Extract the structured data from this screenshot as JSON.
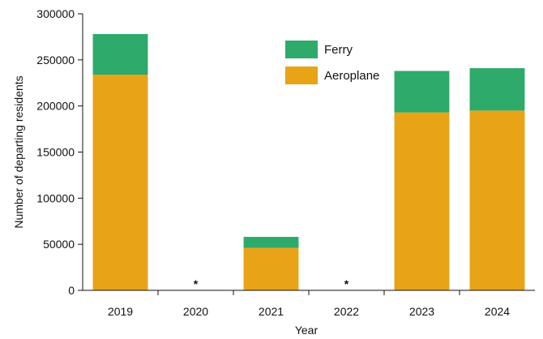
{
  "chart_data": {
    "type": "bar",
    "stacked": true,
    "xlabel": "Year",
    "ylabel": "Number of departing residents",
    "categories": [
      "2019",
      "2020",
      "2021",
      "2022",
      "2023",
      "2024"
    ],
    "ylim": [
      0,
      300000
    ],
    "yticks": [
      "0",
      "50000",
      "100000",
      "150000",
      "200000",
      "250000",
      "300000"
    ],
    "missing_marker": "*",
    "missing": [
      false,
      true,
      false,
      true,
      false,
      false
    ],
    "series": [
      {
        "name": "Aeroplane",
        "color": "#E8A317",
        "values": [
          234000,
          null,
          46000,
          null,
          193000,
          195000
        ]
      },
      {
        "name": "Ferry",
        "color": "#2EAA6A",
        "values": [
          44000,
          null,
          12000,
          null,
          45000,
          46000
        ]
      }
    ],
    "legend": {
      "position": "top-center",
      "order": [
        "Ferry",
        "Aeroplane"
      ]
    },
    "grid": false
  }
}
